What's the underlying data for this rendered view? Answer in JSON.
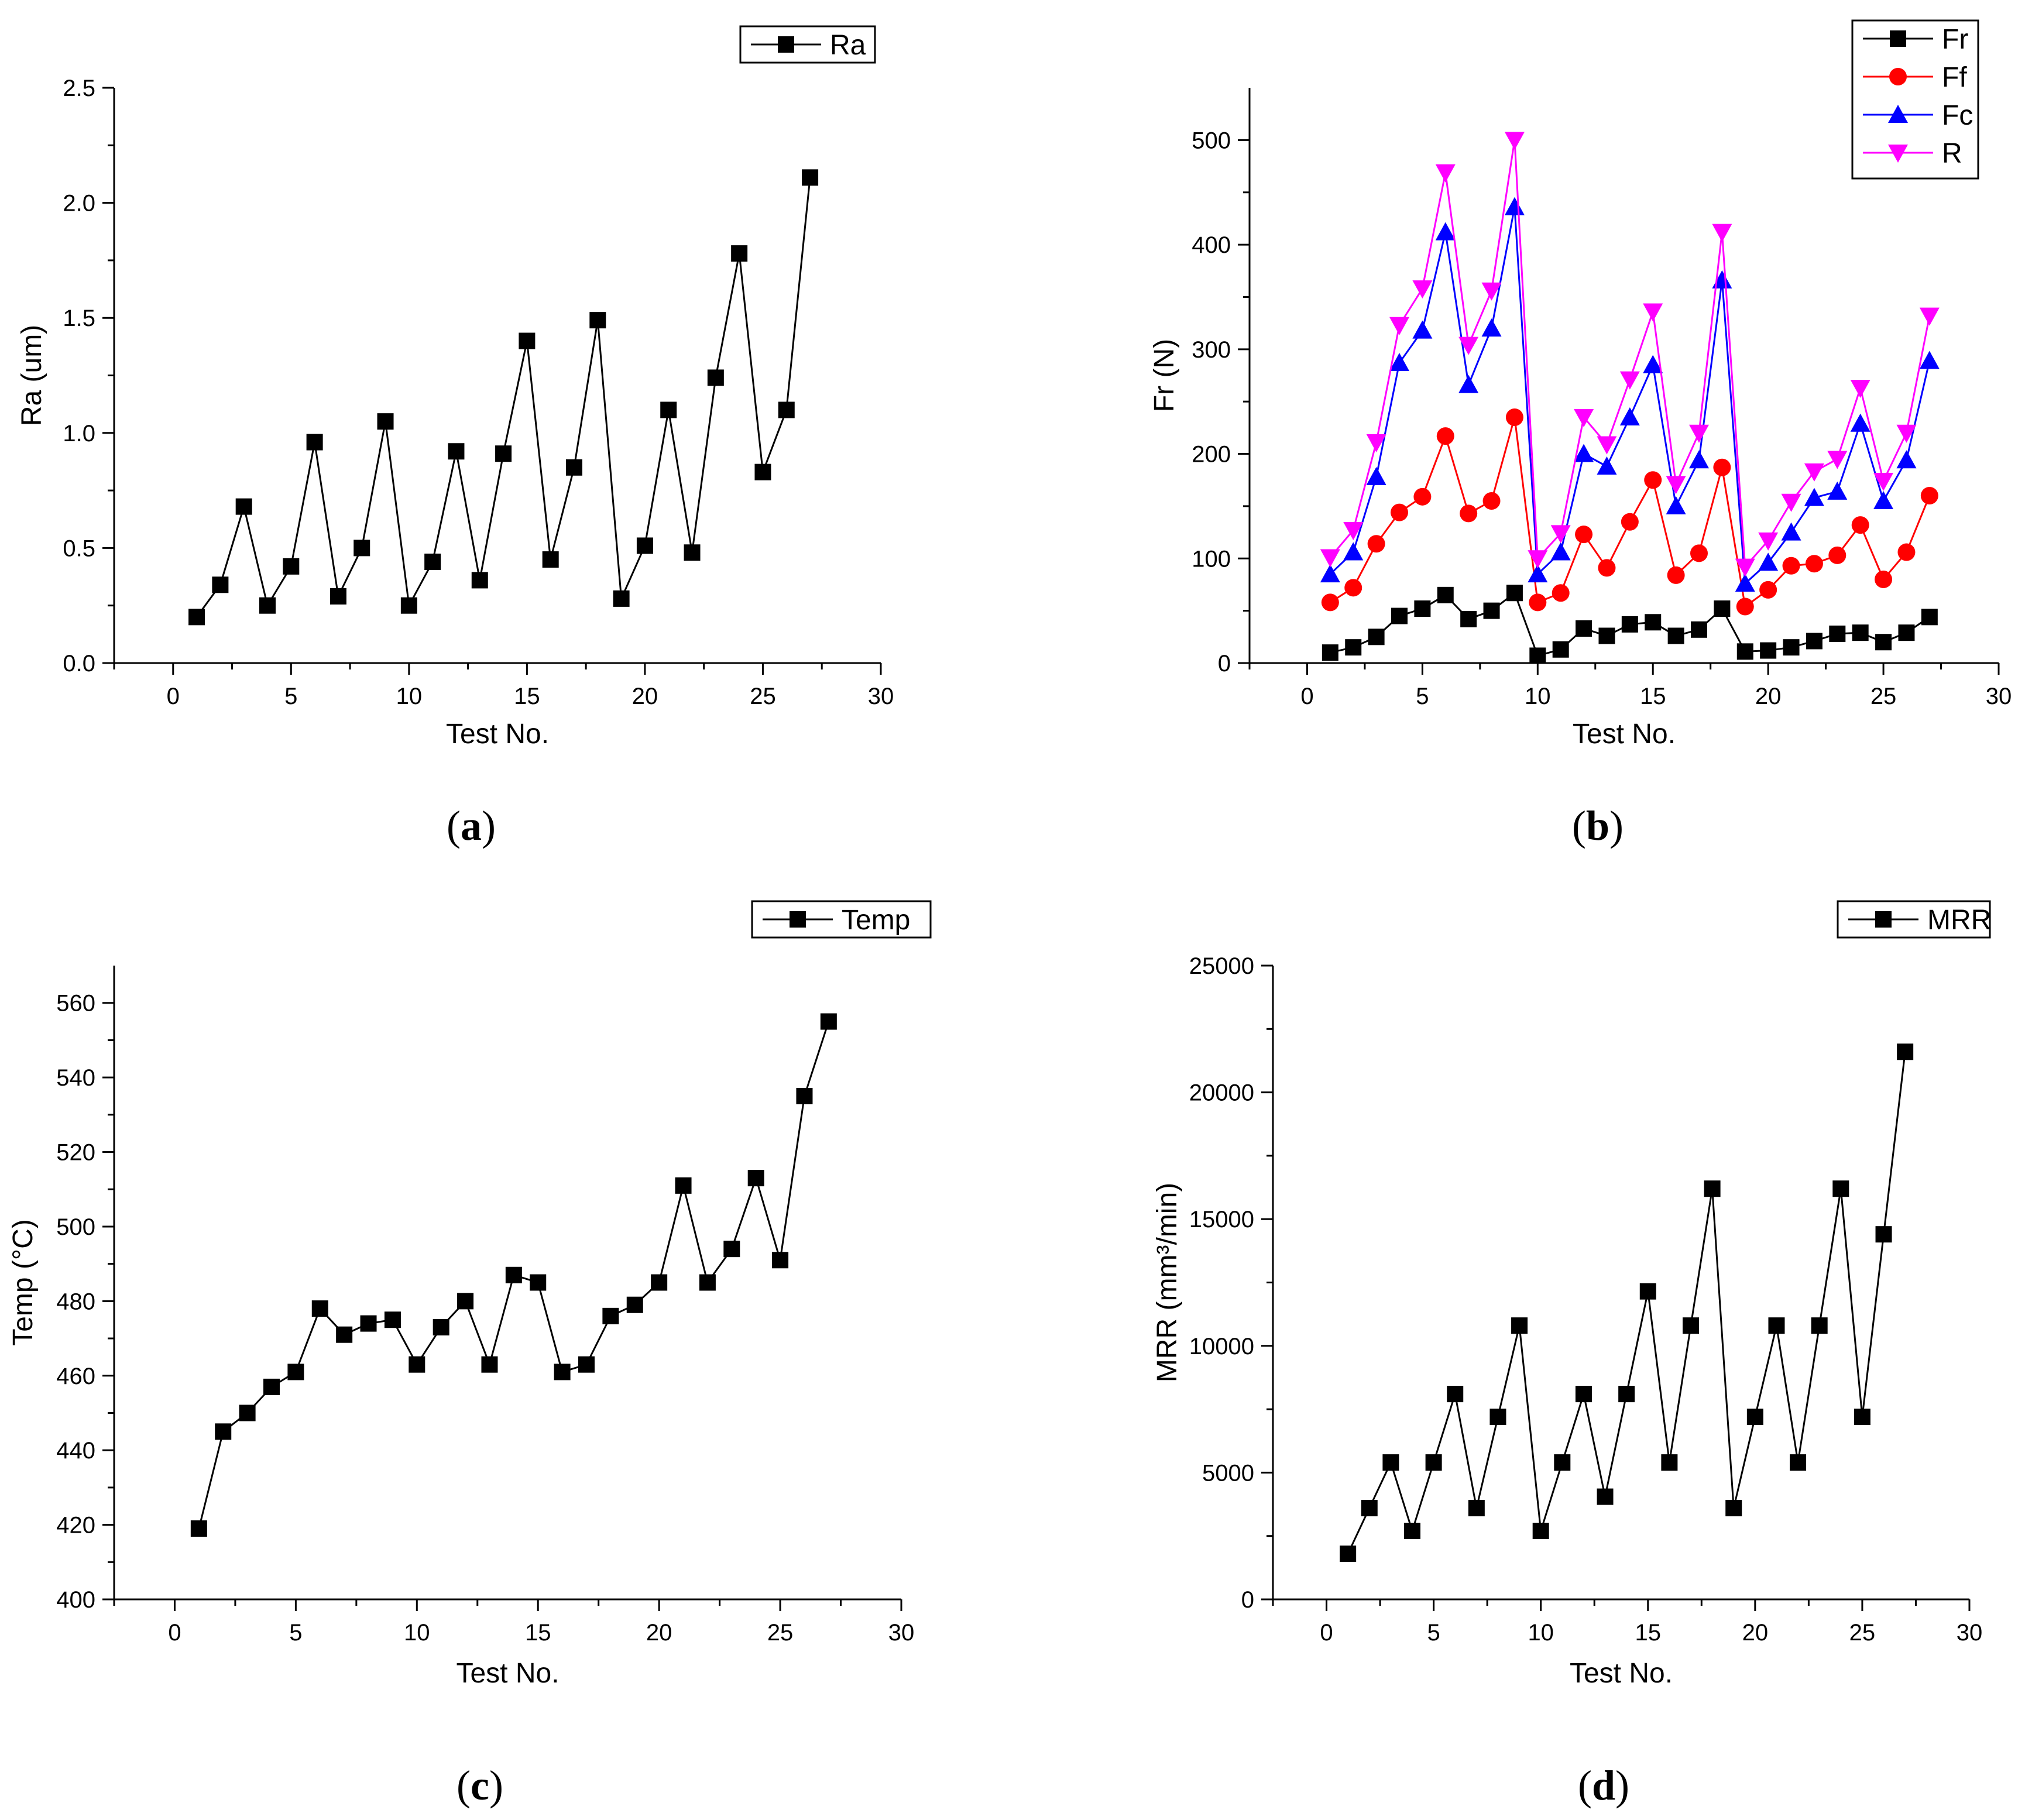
{
  "colors": {
    "black": "#000000",
    "red": "#ff0000",
    "blue": "#0000ff",
    "magenta": "#ff00ff"
  },
  "chart_data": [
    {
      "panel": "(a)",
      "panel_letter": "a",
      "type": "line",
      "xlabel": "Test No.",
      "ylabel": "Ra (um)",
      "xlim": [
        -2.5,
        30
      ],
      "ylim": [
        0,
        2.5
      ],
      "xticks": [
        0,
        5,
        10,
        15,
        20,
        25,
        30
      ],
      "yticks": [
        0,
        0.5,
        1.0,
        1.5,
        2.0,
        2.5
      ],
      "ytick_labels": [
        "0.0",
        "0.5",
        "1.0",
        "1.5",
        "2.0",
        "2.5"
      ],
      "legend_position": "top-right",
      "x": [
        1,
        2,
        3,
        4,
        5,
        6,
        7,
        8,
        9,
        10,
        11,
        12,
        13,
        14,
        15,
        16,
        17,
        18,
        19,
        20,
        21,
        22,
        23,
        24,
        25,
        26,
        27
      ],
      "series": [
        {
          "name": "Ra",
          "color": "#000000",
          "marker": "square",
          "values": [
            0.2,
            0.34,
            0.68,
            0.25,
            0.42,
            0.96,
            0.29,
            0.5,
            1.05,
            0.25,
            0.44,
            0.92,
            0.36,
            0.91,
            1.4,
            0.45,
            0.85,
            1.49,
            0.28,
            0.51,
            1.1,
            0.48,
            1.24,
            1.78,
            0.83,
            1.1,
            2.11
          ]
        }
      ]
    },
    {
      "panel": "(b)",
      "panel_letter": "b",
      "type": "line",
      "xlabel": "Test No.",
      "ylabel": "Fr (N)",
      "xlim": [
        -2.5,
        30
      ],
      "ylim": [
        0,
        550
      ],
      "xticks": [
        0,
        5,
        10,
        15,
        20,
        25,
        30
      ],
      "yticks": [
        0,
        100,
        200,
        300,
        400,
        500
      ],
      "ytick_labels": [
        "0",
        "100",
        "200",
        "300",
        "400",
        "500"
      ],
      "legend_position": "top-right",
      "x": [
        1,
        2,
        3,
        4,
        5,
        6,
        7,
        8,
        9,
        10,
        11,
        12,
        13,
        14,
        15,
        16,
        17,
        18,
        19,
        20,
        21,
        22,
        23,
        24,
        25,
        26,
        27
      ],
      "series": [
        {
          "name": "Fr",
          "color": "#000000",
          "marker": "square",
          "values": [
            10,
            15,
            25,
            45,
            52,
            65,
            42,
            50,
            67,
            7,
            13,
            33,
            26,
            37,
            39,
            26,
            32,
            52,
            11,
            12,
            15,
            21,
            28,
            29,
            20,
            29,
            44
          ]
        },
        {
          "name": "Ff",
          "color": "#ff0000",
          "marker": "circle",
          "values": [
            58,
            72,
            114,
            144,
            159,
            217,
            143,
            155,
            235,
            58,
            67,
            123,
            91,
            135,
            175,
            84,
            105,
            187,
            54,
            70,
            93,
            95,
            103,
            132,
            80,
            106,
            160
          ]
        },
        {
          "name": "Fc",
          "color": "#0000ff",
          "marker": "triangle-up",
          "values": [
            85,
            106,
            178,
            287,
            318,
            412,
            266,
            320,
            436,
            85,
            106,
            200,
            188,
            235,
            285,
            150,
            194,
            366,
            76,
            96,
            125,
            158,
            164,
            229,
            155,
            194,
            289
          ]
        },
        {
          "name": "R",
          "color": "#ff00ff",
          "marker": "triangle-down",
          "values": [
            101,
            127,
            211,
            323,
            358,
            469,
            304,
            356,
            500,
            100,
            124,
            235,
            209,
            271,
            336,
            171,
            220,
            412,
            92,
            117,
            154,
            183,
            195,
            263,
            174,
            220,
            332
          ]
        }
      ]
    },
    {
      "panel": "(c)",
      "panel_letter": "c",
      "type": "line",
      "xlabel": "Test No.",
      "ylabel": "Temp (°C)",
      "xlim": [
        -2.5,
        30
      ],
      "ylim": [
        400,
        570
      ],
      "xticks": [
        0,
        5,
        10,
        15,
        20,
        25,
        30
      ],
      "yticks": [
        400,
        420,
        440,
        460,
        480,
        500,
        520,
        540,
        560
      ],
      "ytick_labels": [
        "400",
        "420",
        "440",
        "460",
        "480",
        "500",
        "520",
        "540",
        "560"
      ],
      "legend_position": "top-right",
      "x": [
        1,
        2,
        3,
        4,
        5,
        6,
        7,
        8,
        9,
        10,
        11,
        12,
        13,
        14,
        15,
        16,
        17,
        18,
        19,
        20,
        21,
        22,
        23,
        24,
        25,
        26,
        27
      ],
      "series": [
        {
          "name": "Temp",
          "color": "#000000",
          "marker": "square",
          "values": [
            419,
            445,
            450,
            457,
            461,
            478,
            471,
            474,
            475,
            463,
            473,
            480,
            463,
            487,
            485,
            461,
            463,
            476,
            479,
            485,
            511,
            485,
            494,
            513,
            491,
            535,
            555
          ]
        }
      ]
    },
    {
      "panel": "(d)",
      "panel_letter": "d",
      "type": "line",
      "xlabel": "Test No.",
      "ylabel": "MRR (mm³/min)",
      "xlim": [
        -2.5,
        30
      ],
      "ylim": [
        0,
        25000
      ],
      "xticks": [
        0,
        5,
        10,
        15,
        20,
        25,
        30
      ],
      "yticks": [
        0,
        5000,
        10000,
        15000,
        20000,
        25000
      ],
      "ytick_labels": [
        "0",
        "5000",
        "10000",
        "15000",
        "20000",
        "25000"
      ],
      "legend_position": "top-right",
      "x": [
        1,
        2,
        3,
        4,
        5,
        6,
        7,
        8,
        9,
        10,
        11,
        12,
        13,
        14,
        15,
        16,
        17,
        18,
        19,
        20,
        21,
        22,
        23,
        24,
        25,
        26,
        27
      ],
      "series": [
        {
          "name": "MRR",
          "color": "#000000",
          "marker": "square",
          "values": [
            1800,
            3600,
            5400,
            2700,
            5400,
            8100,
            3600,
            7200,
            10800,
            2700,
            5400,
            8100,
            4050,
            8100,
            12150,
            5400,
            10800,
            16200,
            3600,
            7200,
            10800,
            5400,
            10800,
            16200,
            7200,
            14400,
            21600
          ]
        }
      ]
    }
  ]
}
